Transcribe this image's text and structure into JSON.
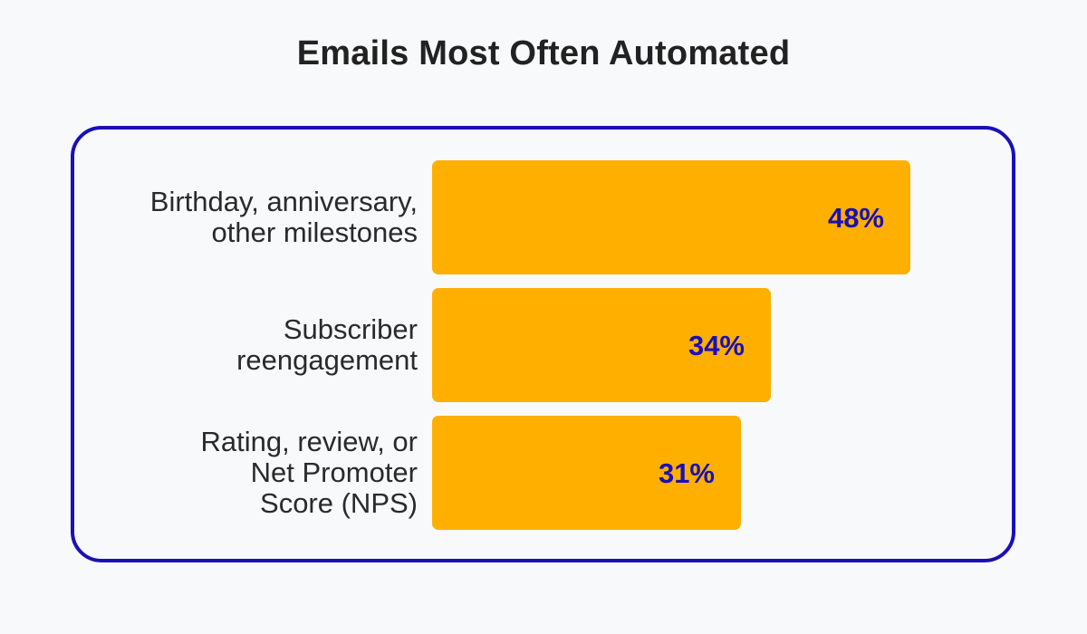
{
  "colors": {
    "bar": "#ffaf00",
    "value_text": "#1a10b8",
    "frame": "#1a10b8"
  },
  "chart_data": {
    "type": "bar",
    "orientation": "horizontal",
    "title": "Emails Most Often Automated",
    "categories": [
      [
        "Birthday, anniversary,",
        "other milestones"
      ],
      [
        "Subscriber",
        "reengagement"
      ],
      [
        "Rating, review, or",
        "Net Promoter",
        "Score (NPS)"
      ]
    ],
    "values": [
      48,
      34,
      31
    ],
    "data_labels": [
      "48%",
      "34%",
      "31%"
    ],
    "unit": "%",
    "xlim": [
      0,
      100
    ],
    "grid": false,
    "legend": "none"
  }
}
